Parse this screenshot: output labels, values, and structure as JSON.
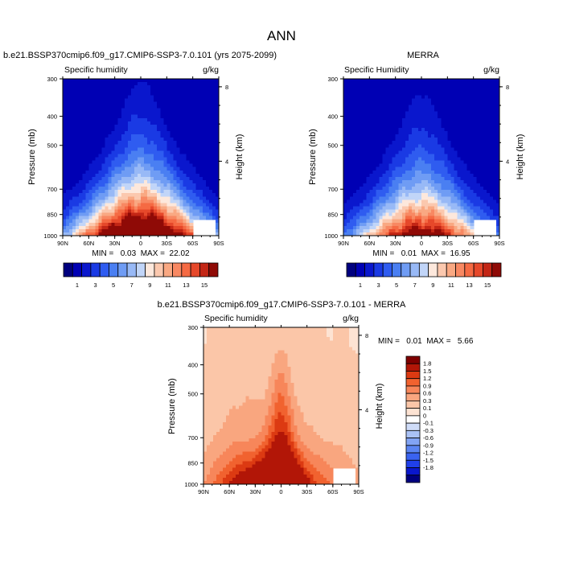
{
  "page": {
    "title": "ANN"
  },
  "palettes": {
    "abs": [
      "#00007f",
      "#0000b4",
      "#0a17cd",
      "#1a3ae4",
      "#2f5cf0",
      "#4a7ff2",
      "#6f9cf4",
      "#98b9f6",
      "#c1d5f8",
      "#fde8dc",
      "#fbc8ae",
      "#f9a882",
      "#f88862",
      "#f56a43",
      "#e6482a",
      "#c32615",
      "#8f0a06"
    ],
    "diff": [
      "#00007f",
      "#0a17cd",
      "#2040ea",
      "#3a63f0",
      "#5b85f2",
      "#82a4f4",
      "#aac2f6",
      "#cfdcf8",
      "#ffffff",
      "#fde3d3",
      "#fbc6a8",
      "#f9a67f",
      "#f7865a",
      "#f1622f",
      "#dc3a12",
      "#b21607",
      "#7f0000"
    ]
  },
  "chart_data": [
    {
      "id": "test",
      "type": "heatmap",
      "title": "b.e21.BSSP370cmip6.f09_g17.CMIP6-SSP3-7.0.101 (yrs 2075-2099)",
      "left_label": "Specific humidity",
      "units_label": "g/kg",
      "xlabel": "",
      "ylabel": "Pressure (mb)",
      "ylabel_right": "Height (km)",
      "x_ticks": [
        "90N",
        "60N",
        "30N",
        "0",
        "30S",
        "60S",
        "90S"
      ],
      "x_tick_values": [
        90,
        60,
        30,
        0,
        -30,
        -60,
        -90
      ],
      "y_ticks": [
        "300",
        "400",
        "500",
        "700",
        "850",
        "1000"
      ],
      "y_tick_values": [
        300,
        400,
        500,
        700,
        850,
        1000
      ],
      "y_right_ticks": [
        "8",
        "4"
      ],
      "y_right_tick_values": [
        8,
        4
      ],
      "xlim": [
        90,
        -90
      ],
      "ylim": [
        1000,
        300
      ],
      "y_scale": "log",
      "stats_text": "MIN =   0.03  MAX =  22.02",
      "min": 0.03,
      "max": 22.02,
      "peak": 22.02,
      "surface_width_deg": 55,
      "top_width_deg": 14,
      "shape_exp": 1.5,
      "floor": 0.03,
      "colorbar": {
        "orientation": "horizontal",
        "labels": [
          "1",
          "3",
          "5",
          "7",
          "9",
          "11",
          "13",
          "15"
        ],
        "levels": [
          0,
          1,
          2,
          3,
          4,
          5,
          6,
          7,
          8,
          9,
          10,
          11,
          12,
          13,
          14,
          15,
          16
        ]
      }
    },
    {
      "id": "ref",
      "type": "heatmap",
      "title": "MERRA",
      "left_label": "Specific Humidity",
      "units_label": "g/kg",
      "xlabel": "",
      "ylabel": "Pressure (mb)",
      "ylabel_right": "Height (km)",
      "x_ticks": [
        "90N",
        "60N",
        "30N",
        "0",
        "30S",
        "60S",
        "90S"
      ],
      "x_tick_values": [
        90,
        60,
        30,
        0,
        -30,
        -60,
        -90
      ],
      "y_ticks": [
        "300",
        "400",
        "500",
        "700",
        "850",
        "1000"
      ],
      "y_tick_values": [
        300,
        400,
        500,
        700,
        850,
        1000
      ],
      "y_right_ticks": [
        "8",
        "4"
      ],
      "y_right_tick_values": [
        8,
        4
      ],
      "xlim": [
        90,
        -90
      ],
      "ylim": [
        1000,
        300
      ],
      "y_scale": "log",
      "stats_text": "MIN =   0.01  MAX =  16.95",
      "min": 0.01,
      "max": 16.95,
      "peak": 16.95,
      "surface_width_deg": 52,
      "top_width_deg": 12,
      "shape_exp": 1.5,
      "floor": 0.01,
      "colorbar": {
        "orientation": "horizontal",
        "labels": [
          "1",
          "3",
          "5",
          "7",
          "9",
          "11",
          "13",
          "15"
        ],
        "levels": [
          0,
          1,
          2,
          3,
          4,
          5,
          6,
          7,
          8,
          9,
          10,
          11,
          12,
          13,
          14,
          15,
          16
        ]
      }
    },
    {
      "id": "diff",
      "type": "heatmap",
      "title": "b.e21.BSSP370cmip6.f09_g17.CMIP6-SSP3-7.0.101 - MERRA",
      "left_label": "Specific humidity",
      "units_label": "g/kg",
      "xlabel": "",
      "ylabel": "Pressure (mb)",
      "ylabel_right": "Height (km)",
      "x_ticks": [
        "90N",
        "60N",
        "30N",
        "0",
        "30S",
        "60S",
        "90S"
      ],
      "x_tick_values": [
        90,
        60,
        30,
        0,
        -30,
        -60,
        -90
      ],
      "y_ticks": [
        "300",
        "400",
        "500",
        "700",
        "850",
        "1000"
      ],
      "y_tick_values": [
        300,
        400,
        500,
        700,
        850,
        1000
      ],
      "y_right_ticks": [
        "8",
        "4"
      ],
      "y_right_tick_values": [
        8,
        4
      ],
      "xlim": [
        90,
        -90
      ],
      "ylim": [
        1000,
        300
      ],
      "y_scale": "log",
      "stats_text": "MIN =   0.01  MAX =   5.66",
      "min": 0.01,
      "max": 5.66,
      "colorbar": {
        "orientation": "vertical",
        "labels": [
          "1.8",
          "1.5",
          "1.2",
          "0.9",
          "0.6",
          "0.3",
          "0.1",
          "0",
          "-0.1",
          "-0.3",
          "-0.6",
          "-0.9",
          "-1.2",
          "-1.5",
          "-1.8"
        ],
        "levels": [
          -1.8,
          -1.5,
          -1.2,
          -0.9,
          -0.6,
          -0.3,
          -0.1,
          0,
          0.1,
          0.3,
          0.6,
          0.9,
          1.2,
          1.5,
          1.8
        ]
      }
    }
  ]
}
